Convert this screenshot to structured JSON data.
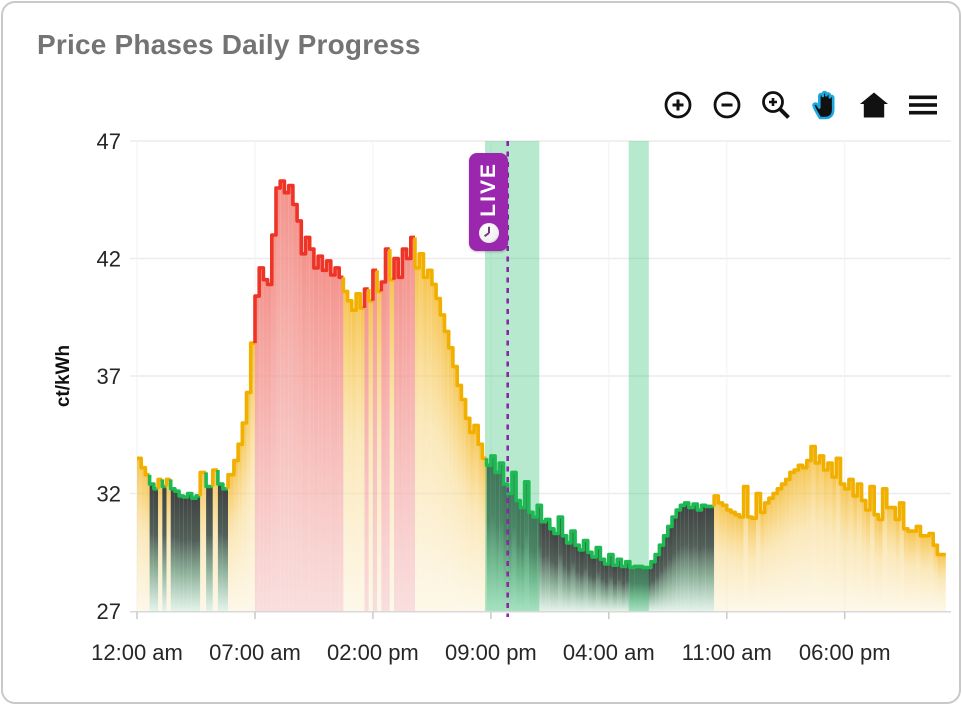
{
  "card": {
    "title": "Price Phases Daily Progress"
  },
  "toolbar": {
    "icons": [
      "zoom-in-icon",
      "zoom-out-icon",
      "box-zoom-icon",
      "pan-icon",
      "home-icon",
      "menu-icon"
    ],
    "active_icon": "pan-icon",
    "icon_color": "#111111",
    "active_accent": "#1ba9e0"
  },
  "chart_data": {
    "type": "area",
    "subtype": "step-area-phases",
    "title": "Price Phases Daily Progress",
    "xlabel": "",
    "ylabel": "ct/kWh",
    "ylim": [
      27,
      47
    ],
    "xlim_hours": [
      0,
      48
    ],
    "grid": true,
    "y_ticks": [
      27,
      32,
      37,
      42,
      47
    ],
    "x_ticks": [
      {
        "t": 0,
        "label": "12:00 am"
      },
      {
        "t": 7,
        "label": "07:00 am"
      },
      {
        "t": 14,
        "label": "02:00 pm"
      },
      {
        "t": 21,
        "label": "09:00 pm"
      },
      {
        "t": 28,
        "label": "04:00 am"
      },
      {
        "t": 35,
        "label": "11:00 am"
      },
      {
        "t": 42,
        "label": "06:00 pm"
      }
    ],
    "phases": {
      "y": {
        "line": "#f1b000",
        "fill": [
          [
            "0%",
            "#f4bb33",
            0.85
          ],
          [
            "45%",
            "#f8d98c",
            0.6
          ],
          [
            "100%",
            "#fbf0d2",
            0.5
          ]
        ]
      },
      "r": {
        "line": "#ee3426",
        "fill": [
          [
            "0%",
            "#f28078",
            0.85
          ],
          [
            "100%",
            "#f6d0cf",
            0.7
          ]
        ]
      },
      "g": {
        "line": "#1eb953",
        "fill": [
          [
            "0%",
            "#3a3d3c",
            0.97
          ],
          [
            "38%",
            "#43514a",
            0.92
          ],
          [
            "68%",
            "#74a184",
            0.8
          ],
          [
            "100%",
            "#d7efe1",
            0.72
          ]
        ]
      }
    },
    "band_color": "rgba(62,196,124,0.38)",
    "highlight_bands": [
      {
        "start": 20.65,
        "end": 23.87
      },
      {
        "start": 29.18,
        "end": 30.37
      }
    ],
    "live_marker": {
      "t": 22.0,
      "label": "LIVE",
      "badge_color": "#9a27ad",
      "line_color": "#8e24aa"
    },
    "points": [
      [
        0.0,
        33.5,
        "y"
      ],
      [
        0.25,
        33.1,
        "y"
      ],
      [
        0.5,
        32.8,
        "y"
      ],
      [
        0.75,
        32.4,
        "g"
      ],
      [
        1.0,
        32.2,
        "g"
      ],
      [
        1.25,
        32.6,
        "y"
      ],
      [
        1.5,
        32.3,
        "g"
      ],
      [
        1.75,
        32.6,
        "y"
      ],
      [
        2.0,
        32.2,
        "g"
      ],
      [
        2.25,
        32.1,
        "g"
      ],
      [
        2.5,
        31.9,
        "g"
      ],
      [
        2.75,
        31.85,
        "g"
      ],
      [
        3.0,
        32.0,
        "g"
      ],
      [
        3.25,
        31.8,
        "g"
      ],
      [
        3.5,
        31.9,
        "g"
      ],
      [
        3.75,
        32.9,
        "y"
      ],
      [
        4.1,
        32.3,
        "g"
      ],
      [
        4.5,
        33.0,
        "y"
      ],
      [
        4.8,
        32.4,
        "g"
      ],
      [
        5.1,
        32.2,
        "g"
      ],
      [
        5.4,
        32.8,
        "y"
      ],
      [
        5.75,
        33.4,
        "y"
      ],
      [
        6.0,
        34.1,
        "y"
      ],
      [
        6.25,
        35.0,
        "y"
      ],
      [
        6.5,
        36.3,
        "y"
      ],
      [
        6.75,
        38.4,
        "y"
      ],
      [
        7.0,
        40.4,
        "r"
      ],
      [
        7.25,
        41.6,
        "r"
      ],
      [
        7.5,
        41.1,
        "r"
      ],
      [
        7.75,
        40.9,
        "r"
      ],
      [
        8.0,
        43.0,
        "r"
      ],
      [
        8.25,
        45.0,
        "r"
      ],
      [
        8.5,
        45.3,
        "r"
      ],
      [
        8.75,
        44.8,
        "r"
      ],
      [
        9.0,
        45.1,
        "r"
      ],
      [
        9.25,
        44.3,
        "r"
      ],
      [
        9.5,
        43.6,
        "r"
      ],
      [
        9.75,
        42.2,
        "r"
      ],
      [
        10.0,
        42.9,
        "r"
      ],
      [
        10.25,
        42.4,
        "r"
      ],
      [
        10.5,
        41.6,
        "r"
      ],
      [
        10.75,
        42.1,
        "r"
      ],
      [
        11.0,
        41.5,
        "r"
      ],
      [
        11.25,
        41.9,
        "r"
      ],
      [
        11.5,
        41.3,
        "r"
      ],
      [
        11.75,
        41.6,
        "r"
      ],
      [
        12.0,
        41.2,
        "r"
      ],
      [
        12.25,
        40.6,
        "y"
      ],
      [
        12.5,
        40.2,
        "y"
      ],
      [
        12.75,
        39.8,
        "y"
      ],
      [
        13.0,
        40.5,
        "y"
      ],
      [
        13.25,
        39.9,
        "y"
      ],
      [
        13.5,
        40.7,
        "r"
      ],
      [
        13.75,
        40.2,
        "y"
      ],
      [
        14.0,
        41.5,
        "r"
      ],
      [
        14.25,
        40.6,
        "y"
      ],
      [
        14.5,
        41.0,
        "r"
      ],
      [
        14.75,
        42.4,
        "r"
      ],
      [
        15.0,
        41.1,
        "y"
      ],
      [
        15.25,
        42.0,
        "r"
      ],
      [
        15.5,
        41.2,
        "r"
      ],
      [
        15.75,
        42.4,
        "r"
      ],
      [
        16.0,
        42.0,
        "r"
      ],
      [
        16.25,
        42.9,
        "r"
      ],
      [
        16.5,
        41.6,
        "y"
      ],
      [
        16.75,
        42.2,
        "y"
      ],
      [
        17.0,
        41.2,
        "y"
      ],
      [
        17.25,
        41.5,
        "y"
      ],
      [
        17.5,
        40.9,
        "y"
      ],
      [
        17.75,
        40.3,
        "y"
      ],
      [
        18.0,
        39.6,
        "y"
      ],
      [
        18.25,
        38.9,
        "y"
      ],
      [
        18.5,
        38.2,
        "y"
      ],
      [
        18.75,
        37.4,
        "y"
      ],
      [
        19.0,
        36.6,
        "y"
      ],
      [
        19.25,
        36.0,
        "y"
      ],
      [
        19.5,
        35.2,
        "y"
      ],
      [
        19.75,
        34.6,
        "y"
      ],
      [
        20.0,
        34.9,
        "y"
      ],
      [
        20.25,
        34.1,
        "y"
      ],
      [
        20.5,
        33.5,
        "y"
      ],
      [
        20.75,
        33.2,
        "g"
      ],
      [
        21.0,
        33.6,
        "g"
      ],
      [
        21.25,
        32.9,
        "g"
      ],
      [
        21.5,
        33.3,
        "g"
      ],
      [
        21.75,
        32.4,
        "g"
      ],
      [
        22.0,
        32.0,
        "g"
      ],
      [
        22.25,
        32.9,
        "g"
      ],
      [
        22.5,
        31.7,
        "g"
      ],
      [
        22.75,
        31.4,
        "g"
      ],
      [
        23.0,
        32.5,
        "g"
      ],
      [
        23.25,
        31.2,
        "g"
      ],
      [
        23.5,
        31.0,
        "g"
      ],
      [
        23.75,
        31.5,
        "g"
      ],
      [
        24.0,
        30.8,
        "g"
      ],
      [
        24.25,
        30.9,
        "g"
      ],
      [
        24.5,
        30.5,
        "g"
      ],
      [
        24.75,
        30.3,
        "g"
      ],
      [
        25.0,
        31.0,
        "g"
      ],
      [
        25.25,
        30.2,
        "g"
      ],
      [
        25.5,
        29.9,
        "g"
      ],
      [
        25.75,
        30.4,
        "g"
      ],
      [
        26.0,
        29.8,
        "g"
      ],
      [
        26.25,
        29.6,
        "g"
      ],
      [
        26.5,
        30.0,
        "g"
      ],
      [
        26.75,
        29.5,
        "g"
      ],
      [
        27.0,
        29.3,
        "g"
      ],
      [
        27.25,
        29.7,
        "g"
      ],
      [
        27.5,
        29.2,
        "g"
      ],
      [
        27.75,
        29.0,
        "g"
      ],
      [
        28.0,
        29.4,
        "g"
      ],
      [
        28.25,
        28.95,
        "g"
      ],
      [
        28.5,
        29.2,
        "g"
      ],
      [
        28.75,
        28.9,
        "g"
      ],
      [
        29.0,
        29.1,
        "g"
      ],
      [
        29.25,
        28.85,
        "g"
      ],
      [
        29.5,
        28.9,
        "g"
      ],
      [
        30.0,
        28.85,
        "g"
      ],
      [
        30.5,
        29.1,
        "g"
      ],
      [
        30.75,
        29.4,
        "g"
      ],
      [
        31.0,
        29.8,
        "g"
      ],
      [
        31.25,
        30.2,
        "g"
      ],
      [
        31.5,
        30.6,
        "g"
      ],
      [
        31.75,
        31.0,
        "g"
      ],
      [
        32.0,
        31.3,
        "g"
      ],
      [
        32.25,
        31.5,
        "g"
      ],
      [
        32.5,
        31.6,
        "g"
      ],
      [
        32.75,
        31.4,
        "g"
      ],
      [
        33.0,
        31.55,
        "g"
      ],
      [
        33.25,
        31.3,
        "g"
      ],
      [
        33.5,
        31.5,
        "g"
      ],
      [
        33.75,
        31.45,
        "g"
      ],
      [
        34.25,
        31.9,
        "y"
      ],
      [
        34.5,
        31.6,
        "y"
      ],
      [
        34.75,
        31.5,
        "y"
      ],
      [
        35.0,
        31.3,
        "y"
      ],
      [
        35.25,
        31.2,
        "y"
      ],
      [
        35.5,
        31.1,
        "y"
      ],
      [
        35.75,
        31.0,
        "y"
      ],
      [
        36.0,
        32.3,
        "y"
      ],
      [
        36.25,
        31.0,
        "y"
      ],
      [
        36.5,
        30.95,
        "y"
      ],
      [
        36.75,
        32.0,
        "y"
      ],
      [
        37.0,
        31.2,
        "y"
      ],
      [
        37.25,
        31.6,
        "y"
      ],
      [
        37.5,
        31.8,
        "y"
      ],
      [
        37.75,
        32.0,
        "y"
      ],
      [
        38.0,
        32.2,
        "y"
      ],
      [
        38.25,
        32.4,
        "y"
      ],
      [
        38.5,
        32.6,
        "y"
      ],
      [
        38.75,
        32.9,
        "y"
      ],
      [
        39.0,
        33.0,
        "y"
      ],
      [
        39.25,
        33.2,
        "y"
      ],
      [
        39.5,
        33.1,
        "y"
      ],
      [
        39.75,
        33.4,
        "y"
      ],
      [
        40.0,
        34.0,
        "y"
      ],
      [
        40.25,
        33.3,
        "y"
      ],
      [
        40.5,
        33.6,
        "y"
      ],
      [
        40.75,
        33.0,
        "y"
      ],
      [
        41.0,
        33.3,
        "y"
      ],
      [
        41.25,
        32.7,
        "y"
      ],
      [
        41.5,
        33.5,
        "y"
      ],
      [
        41.75,
        32.4,
        "y"
      ],
      [
        42.0,
        32.2,
        "y"
      ],
      [
        42.25,
        32.6,
        "y"
      ],
      [
        42.5,
        31.9,
        "y"
      ],
      [
        42.75,
        32.4,
        "y"
      ],
      [
        43.0,
        31.7,
        "y"
      ],
      [
        43.25,
        31.3,
        "y"
      ],
      [
        43.5,
        32.3,
        "y"
      ],
      [
        43.75,
        31.1,
        "y"
      ],
      [
        44.0,
        30.9,
        "y"
      ],
      [
        44.25,
        32.2,
        "y"
      ],
      [
        44.5,
        31.4,
        "y"
      ],
      [
        45.0,
        30.9,
        "y"
      ],
      [
        45.25,
        31.6,
        "y"
      ],
      [
        45.5,
        30.5,
        "y"
      ],
      [
        45.75,
        30.4,
        "y"
      ],
      [
        46.25,
        30.6,
        "y"
      ],
      [
        46.5,
        30.2,
        "y"
      ],
      [
        47.0,
        30.3,
        "y"
      ],
      [
        47.25,
        29.8,
        "y"
      ],
      [
        47.5,
        29.4,
        "y"
      ]
    ]
  }
}
